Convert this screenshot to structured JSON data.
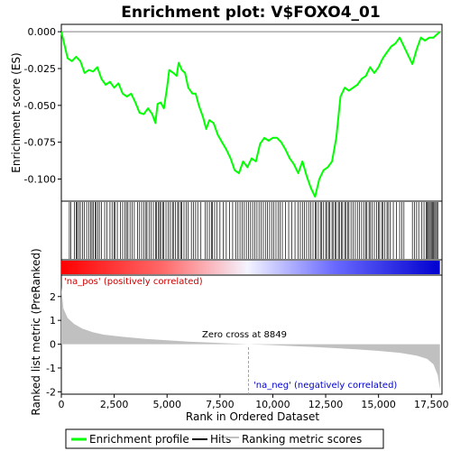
{
  "chart_data": {
    "type": "line",
    "title": "Enrichment plot: V$FOXO4_01",
    "es_panel": {
      "ylabel": "Enrichment score (ES)",
      "ylim": [
        -0.115,
        0.005
      ],
      "yticks": [
        0.0,
        -0.025,
        -0.05,
        -0.075,
        -0.1
      ],
      "ytick_labels": [
        "0.000",
        "-0.025",
        "-0.050",
        "-0.075",
        "-0.100"
      ],
      "grid": false,
      "series_name": "Enrichment profile",
      "series_color": "#00ff00",
      "profile": [
        [
          0,
          0.0
        ],
        [
          300,
          -0.018
        ],
        [
          500,
          -0.02
        ],
        [
          700,
          -0.017
        ],
        [
          900,
          -0.02
        ],
        [
          1100,
          -0.028
        ],
        [
          1300,
          -0.026
        ],
        [
          1500,
          -0.027
        ],
        [
          1700,
          -0.024
        ],
        [
          1900,
          -0.032
        ],
        [
          2100,
          -0.036
        ],
        [
          2300,
          -0.034
        ],
        [
          2500,
          -0.038
        ],
        [
          2700,
          -0.035
        ],
        [
          2900,
          -0.042
        ],
        [
          3100,
          -0.044
        ],
        [
          3300,
          -0.042
        ],
        [
          3500,
          -0.048
        ],
        [
          3700,
          -0.055
        ],
        [
          3900,
          -0.056
        ],
        [
          4100,
          -0.052
        ],
        [
          4300,
          -0.056
        ],
        [
          4450,
          -0.062
        ],
        [
          4550,
          -0.049
        ],
        [
          4700,
          -0.048
        ],
        [
          4850,
          -0.052
        ],
        [
          5000,
          -0.038
        ],
        [
          5100,
          -0.026
        ],
        [
          5300,
          -0.028
        ],
        [
          5450,
          -0.03
        ],
        [
          5550,
          -0.021
        ],
        [
          5700,
          -0.026
        ],
        [
          5850,
          -0.028
        ],
        [
          6000,
          -0.038
        ],
        [
          6200,
          -0.042
        ],
        [
          6350,
          -0.042
        ],
        [
          6500,
          -0.05
        ],
        [
          6700,
          -0.058
        ],
        [
          6850,
          -0.066
        ],
        [
          7000,
          -0.06
        ],
        [
          7200,
          -0.062
        ],
        [
          7400,
          -0.07
        ],
        [
          7600,
          -0.075
        ],
        [
          7800,
          -0.08
        ],
        [
          8000,
          -0.086
        ],
        [
          8200,
          -0.094
        ],
        [
          8400,
          -0.096
        ],
        [
          8600,
          -0.088
        ],
        [
          8800,
          -0.092
        ],
        [
          9000,
          -0.086
        ],
        [
          9200,
          -0.088
        ],
        [
          9400,
          -0.076
        ],
        [
          9600,
          -0.072
        ],
        [
          9800,
          -0.074
        ],
        [
          10000,
          -0.072
        ],
        [
          10200,
          -0.072
        ],
        [
          10400,
          -0.075
        ],
        [
          10600,
          -0.08
        ],
        [
          10800,
          -0.086
        ],
        [
          11000,
          -0.09
        ],
        [
          11200,
          -0.096
        ],
        [
          11400,
          -0.088
        ],
        [
          11600,
          -0.098
        ],
        [
          11800,
          -0.106
        ],
        [
          12000,
          -0.112
        ],
        [
          12200,
          -0.1
        ],
        [
          12400,
          -0.094
        ],
        [
          12600,
          -0.092
        ],
        [
          12800,
          -0.088
        ],
        [
          13000,
          -0.072
        ],
        [
          13200,
          -0.044
        ],
        [
          13400,
          -0.038
        ],
        [
          13600,
          -0.04
        ],
        [
          13800,
          -0.038
        ],
        [
          14000,
          -0.036
        ],
        [
          14200,
          -0.032
        ],
        [
          14400,
          -0.03
        ],
        [
          14600,
          -0.024
        ],
        [
          14800,
          -0.028
        ],
        [
          15000,
          -0.024
        ],
        [
          15200,
          -0.018
        ],
        [
          15400,
          -0.014
        ],
        [
          15600,
          -0.01
        ],
        [
          15800,
          -0.008
        ],
        [
          16000,
          -0.004
        ],
        [
          16200,
          -0.01
        ],
        [
          16400,
          -0.016
        ],
        [
          16600,
          -0.022
        ],
        [
          16800,
          -0.012
        ],
        [
          17000,
          -0.004
        ],
        [
          17200,
          -0.006
        ],
        [
          17400,
          -0.004
        ],
        [
          17600,
          -0.004
        ],
        [
          17750,
          -0.002
        ],
        [
          17900,
          0.0
        ]
      ]
    },
    "hits_panel": {
      "series_name": "Hits",
      "hits": [
        380,
        450,
        620,
        700,
        750,
        820,
        900,
        1000,
        1080,
        1200,
        1300,
        1380,
        1450,
        1520,
        1600,
        1650,
        1720,
        1800,
        1900,
        2050,
        2150,
        2300,
        2400,
        2500,
        2550,
        2650,
        2800,
        2900,
        3000,
        3080,
        3150,
        3250,
        3350,
        3450,
        3600,
        3700,
        3800,
        3900,
        4000,
        4050,
        4150,
        4250,
        4350,
        4450,
        4500,
        4580,
        4650,
        4700,
        4800,
        4850,
        4950,
        5050,
        5150,
        5250,
        5300,
        5400,
        5500,
        5550,
        5650,
        5700,
        5800,
        5900,
        6000,
        6150,
        6250,
        6350,
        6450,
        6600,
        6800,
        6900,
        7000,
        7100,
        7150,
        7250,
        7350,
        7500,
        7650,
        7800,
        7950,
        8100,
        8250,
        8350,
        8450,
        8550,
        8650,
        8750,
        8850,
        8950,
        9050,
        9150,
        9250,
        9350,
        9450,
        9550,
        9650,
        9750,
        9850,
        9950,
        10050,
        10150,
        10250,
        10350,
        10450,
        10600,
        10750,
        10900,
        11050,
        11200,
        11300,
        11400,
        11500,
        11600,
        11700,
        11800,
        11900,
        12000,
        12050,
        12150,
        12250,
        12300,
        12400,
        12500,
        12550,
        12650,
        12700,
        12800,
        12850,
        12950,
        13000,
        13100,
        13150,
        13250,
        13300,
        13400,
        13450,
        13550,
        13600,
        13700,
        13800,
        13900,
        14000,
        14100,
        14200,
        14300,
        14400,
        14450,
        14550,
        14600,
        14700,
        14800,
        14900,
        15000,
        15050,
        15150,
        15200,
        15300,
        15400,
        15450,
        15550,
        15700,
        15850,
        16000,
        16100,
        16200,
        16600,
        16700,
        16800,
        16900,
        17050,
        17150,
        17250,
        17300,
        17350,
        17400,
        17450,
        17500,
        17550,
        17600,
        17650,
        17700,
        17750,
        17800
      ]
    },
    "metric_panel": {
      "ylabel": "Ranked list metric (PreRanked)",
      "xlabel": "Rank in Ordered Dataset",
      "ylim": [
        -2.1,
        2.9
      ],
      "yticks": [
        2,
        1,
        0,
        -1,
        -2
      ],
      "ytick_labels": [
        "2",
        "1",
        "0",
        "-1",
        "-2"
      ],
      "series_name": "Ranking metric scores",
      "series_color": "#c0c0c0",
      "curve": [
        [
          0,
          2.4
        ],
        [
          100,
          1.5
        ],
        [
          300,
          1.1
        ],
        [
          600,
          0.85
        ],
        [
          1000,
          0.65
        ],
        [
          1500,
          0.5
        ],
        [
          2000,
          0.4
        ],
        [
          3000,
          0.3
        ],
        [
          4000,
          0.22
        ],
        [
          5000,
          0.16
        ],
        [
          6000,
          0.11
        ],
        [
          7000,
          0.07
        ],
        [
          8000,
          0.03
        ],
        [
          8849,
          0.0
        ],
        [
          10000,
          -0.04
        ],
        [
          11000,
          -0.08
        ],
        [
          12000,
          -0.12
        ],
        [
          13000,
          -0.17
        ],
        [
          14000,
          -0.22
        ],
        [
          15000,
          -0.28
        ],
        [
          16000,
          -0.36
        ],
        [
          16800,
          -0.48
        ],
        [
          17300,
          -0.62
        ],
        [
          17600,
          -0.85
        ],
        [
          17800,
          -1.3
        ],
        [
          17900,
          -1.9
        ]
      ],
      "zero_cross_label": "Zero cross at 8849",
      "zero_cross": 8849,
      "pos_label": "'na_pos' (positively correlated)",
      "neg_label": "'na_neg' (negatively correlated)"
    },
    "xlim": [
      0,
      18000
    ],
    "n_genes": 17900,
    "xticks": [
      0,
      2500,
      5000,
      7500,
      10000,
      12500,
      15000,
      17500
    ],
    "xtick_labels": [
      "0",
      "2,500",
      "5,000",
      "7,500",
      "10,000",
      "12,500",
      "15,000",
      "17,500"
    ],
    "legend": {
      "placement": "bottom",
      "items": [
        {
          "label": "Enrichment profile",
          "color": "#00ff00"
        },
        {
          "label": "Hits",
          "color": "#000000"
        },
        {
          "label": "Ranking metric scores",
          "color": "#c0c0c0"
        }
      ]
    }
  }
}
